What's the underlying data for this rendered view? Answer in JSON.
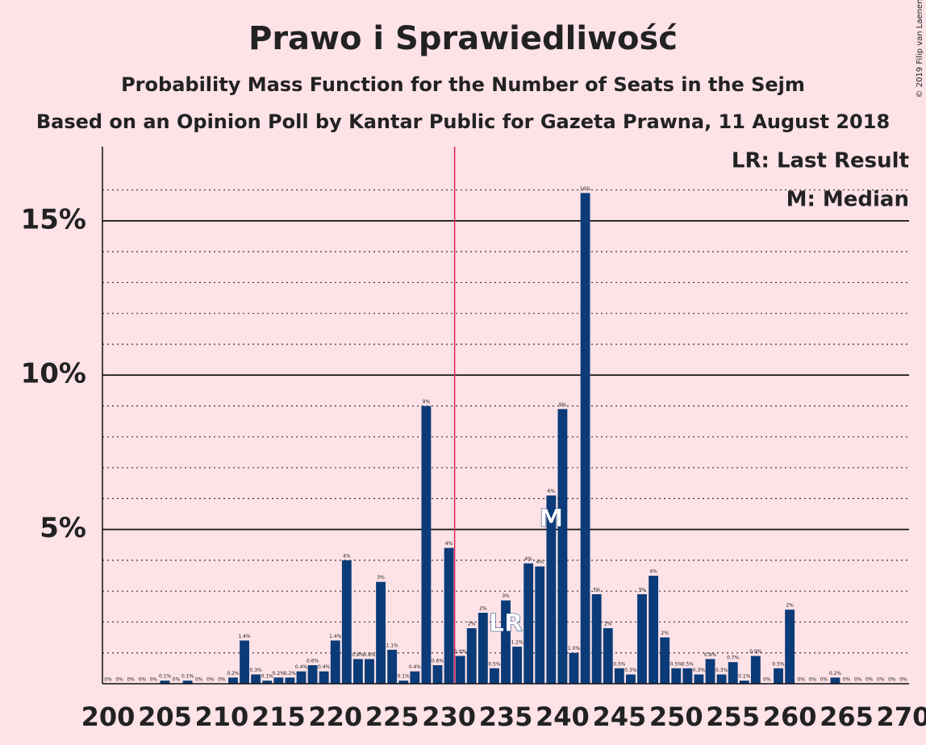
{
  "chart_data": {
    "type": "bar",
    "title": "Prawo i Sprawiedliwość",
    "subtitle": "Probability Mass Function for the Number of Seats in the Sejm",
    "subtitle2": "Based on an Opinion Poll by Kantar Public for Gazeta Prawna, 11 August 2018",
    "copyright": "© 2019 Filip van Laenen",
    "legend": [
      "LR: Last Result",
      "M: Median"
    ],
    "x": [
      200,
      201,
      202,
      203,
      204,
      205,
      206,
      207,
      208,
      209,
      210,
      211,
      212,
      213,
      214,
      215,
      216,
      217,
      218,
      219,
      220,
      221,
      222,
      223,
      224,
      225,
      226,
      227,
      228,
      229,
      230,
      231,
      232,
      233,
      234,
      235,
      236,
      237,
      238,
      239,
      240,
      241,
      242,
      243,
      244,
      245,
      246,
      247,
      248,
      249,
      250,
      251,
      252,
      253,
      254,
      255,
      256,
      257,
      258,
      259,
      260,
      261,
      262,
      263,
      264,
      265,
      266,
      267,
      268,
      269,
      270
    ],
    "values": [
      0,
      0,
      0,
      0,
      0,
      0.1,
      0,
      0.1,
      0,
      0,
      0,
      0.2,
      1.4,
      0.3,
      0.1,
      0.2,
      0.2,
      0.4,
      0.6,
      0.4,
      1.4,
      4.0,
      0.8,
      0.8,
      3.3,
      1.1,
      0.1,
      0.4,
      9.0,
      0.6,
      4.4,
      0.9,
      1.8,
      2.3,
      0.5,
      2.7,
      1.2,
      3.9,
      3.8,
      6.1,
      8.9,
      1.0,
      15.9,
      2.9,
      1.8,
      0.5,
      0.3,
      2.9,
      3.5,
      1.5,
      0.5,
      0.5,
      0.3,
      0.8,
      0.3,
      0.7,
      0.1,
      0.9,
      0,
      0.5,
      2.4,
      0,
      0,
      0,
      0.2,
      0,
      0,
      0,
      0,
      0,
      0
    ],
    "value_labels": [
      "0%",
      "0%",
      "0%",
      "0%",
      "0%",
      "0.1%",
      "0%",
      "0.1%",
      "0%",
      "0%",
      "0%",
      "0.2%",
      "1.4%",
      "0.3%",
      "0.1%",
      "0.2%",
      "0.2%",
      "0.4%",
      "0.6%",
      "0.4%",
      "1.4%",
      "4%",
      "0.8%",
      "0.8%",
      "3%",
      "1.1%",
      "0.1%",
      "0.4%",
      "9%",
      "0.6%",
      "4%",
      "0.9%",
      "2%",
      "2%",
      "0.5%",
      "3%",
      "1.2%",
      "4%",
      "4%",
      "6%",
      "9%",
      "1.0%",
      "16%",
      "3%",
      "2%",
      "0.5%",
      "0.3%",
      "3%",
      "4%",
      "2%",
      "0.5%",
      "0.5%",
      "0.3%",
      "0.8%",
      "0.3%",
      "0.7%",
      "0.1%",
      "0.9%",
      "0%",
      "0.5%",
      "2%",
      "0%",
      "0%",
      "0%",
      "0.2%",
      "0%",
      "0%",
      "0%",
      "0%",
      "0%",
      "0%"
    ],
    "color": "#0b3b78",
    "majority": 231,
    "markers": [
      {
        "label": "LR",
        "x": 235
      },
      {
        "label": "M",
        "x": 239
      }
    ],
    "xlim": [
      199.5,
      270.5
    ],
    "xticks": [
      200,
      205,
      210,
      215,
      220,
      225,
      230,
      235,
      240,
      245,
      250,
      255,
      260,
      265,
      270
    ],
    "ylim": [
      0,
      17.4
    ],
    "yticks": [
      {
        "value": 5,
        "label": "5%"
      },
      {
        "value": 10,
        "label": "10%"
      },
      {
        "value": 15,
        "label": "15%"
      }
    ],
    "minor_yticks": [
      1,
      2,
      3,
      4,
      6,
      7,
      8,
      9,
      11,
      12,
      13,
      14,
      16
    ],
    "grid": true
  }
}
